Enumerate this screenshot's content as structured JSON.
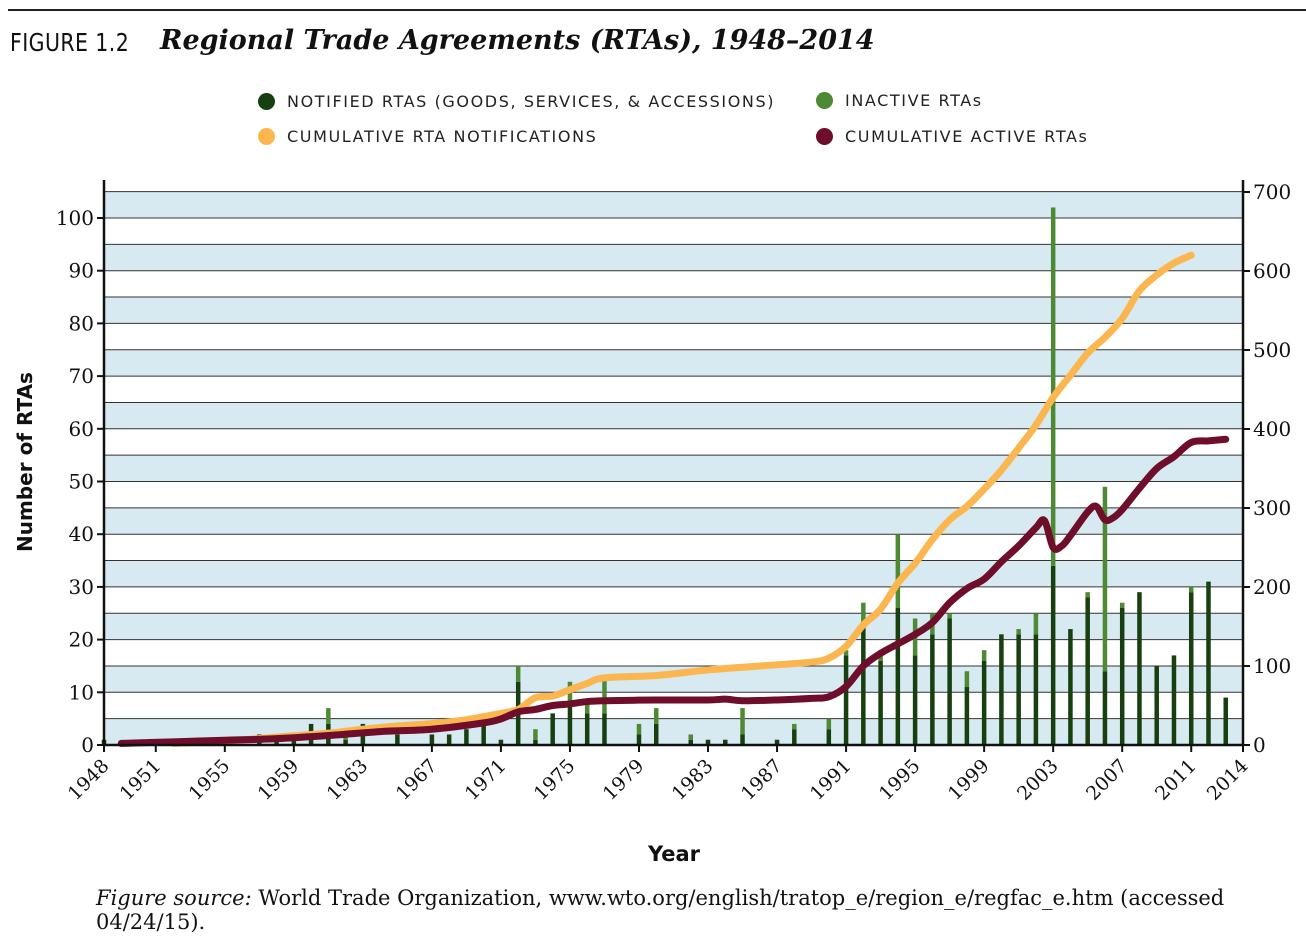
{
  "figure": {
    "label": "FIGURE 1.2",
    "title": "Regional Trade Agreements (RTAs), 1948–2014"
  },
  "legend": [
    {
      "label": "NOTIFIED RTAS (GOODS, SERVICES, & ACCESSIONS)",
      "color": "#183f10"
    },
    {
      "label": "INACTIVE RTAs",
      "color": "#4e8a34"
    },
    {
      "label": "CUMULATIVE RTA NOTIFICATIONS",
      "color": "#fbb650"
    },
    {
      "label": "CUMULATIVE ACTIVE RTAs",
      "color": "#6e0e2a"
    }
  ],
  "source": {
    "prefix": "Figure source:",
    "text": " World Trade Organization, www.wto.org/english/tratop_e/region_e/regfac_e.htm (accessed 04/24/15)."
  },
  "chart_data": {
    "type": "bar",
    "xlabel": "Year",
    "ylabel": "Number of RTAs",
    "ylim": [
      0,
      105
    ],
    "y2lim": [
      0,
      700
    ],
    "yticks": [
      0,
      10,
      20,
      30,
      40,
      50,
      60,
      70,
      80,
      90,
      100
    ],
    "y2ticks": [
      0,
      100,
      200,
      300,
      400,
      500,
      600,
      700
    ],
    "xlim": [
      1948,
      2014
    ],
    "xticks": [
      1948,
      1951,
      1955,
      1959,
      1963,
      1967,
      1971,
      1975,
      1979,
      1983,
      1987,
      1991,
      1995,
      1999,
      2003,
      2007,
      2011,
      2014
    ],
    "grid": true,
    "colors": {
      "notified": "#183f10",
      "inactive": "#4e8a34",
      "cumulative_notifications": "#fbb650",
      "cumulative_active": "#6e0e2a",
      "band": "#d7e9f1"
    },
    "bars": {
      "years": [
        1948,
        1950,
        1953,
        1955,
        1957,
        1958,
        1959,
        1960,
        1961,
        1962,
        1963,
        1965,
        1967,
        1968,
        1969,
        1970,
        1971,
        1972,
        1973,
        1974,
        1975,
        1976,
        1977,
        1979,
        1980,
        1982,
        1983,
        1984,
        1985,
        1987,
        1988,
        1990,
        1991,
        1992,
        1993,
        1994,
        1995,
        1996,
        1997,
        1998,
        1999,
        2000,
        2001,
        2002,
        2003,
        2004,
        2005,
        2006,
        2007,
        2008,
        2009,
        2010,
        2011,
        2012,
        2013
      ],
      "notified": [
        1,
        1,
        1,
        1,
        2,
        1,
        1,
        4,
        4,
        1,
        4,
        2,
        2,
        2,
        3,
        4,
        1,
        12,
        1,
        6,
        8,
        6,
        6,
        2,
        4,
        1,
        1,
        1,
        2,
        1,
        3,
        3,
        17,
        23,
        16,
        26,
        17,
        21,
        24,
        11,
        16,
        21,
        21,
        21,
        34,
        22,
        28,
        14,
        26,
        29,
        15,
        17,
        29,
        31,
        9
      ],
      "inactive": [
        0,
        0,
        0,
        0,
        0,
        1,
        0,
        0,
        3,
        1,
        0,
        0,
        0,
        0,
        0,
        2,
        0,
        3,
        2,
        0,
        4,
        2,
        7,
        2,
        3,
        1,
        0,
        0,
        5,
        0,
        1,
        2,
        1,
        4,
        2,
        14,
        7,
        4,
        1,
        3,
        2,
        0,
        1,
        4,
        68,
        0,
        1,
        35,
        1,
        0,
        0,
        0,
        1,
        0,
        0
      ]
    },
    "series": [
      {
        "name": "CUMULATIVE RTA NOTIFICATIONS",
        "axis": "right",
        "x": [
          1952,
          1955,
          1958,
          1961,
          1963,
          1965,
          1967,
          1969,
          1971,
          1972,
          1973,
          1974,
          1975,
          1976,
          1977,
          1980,
          1983,
          1986,
          1989,
          1990,
          1991,
          1992,
          1993,
          1994,
          1995,
          1996,
          1997,
          1998,
          1999,
          2000,
          2001,
          2002,
          2003,
          2004,
          2005,
          2006,
          2007,
          2008,
          2009,
          2010,
          2011
        ],
        "y": [
          2,
          5,
          10,
          15,
          20,
          24,
          27,
          32,
          40,
          45,
          60,
          62,
          70,
          78,
          85,
          88,
          95,
          100,
          105,
          110,
          125,
          152,
          172,
          205,
          230,
          260,
          285,
          302,
          324,
          348,
          376,
          405,
          440,
          468,
          496,
          516,
          540,
          575,
          595,
          610,
          620
        ]
      },
      {
        "name": "CUMULATIVE ACTIVE RTAs",
        "axis": "right",
        "x": [
          1949,
          1952,
          1955,
          1958,
          1961,
          1964,
          1967,
          1970,
          1971,
          1972,
          1973,
          1974,
          1975,
          1976,
          1977,
          1980,
          1983,
          1984,
          1985,
          1987,
          1989,
          1990,
          1991,
          1992,
          1993,
          1994,
          1995,
          1996,
          1997,
          1998,
          1999,
          2000,
          2001,
          2002,
          2002.5,
          2003,
          2003.5,
          2004,
          2005,
          2005.5,
          2006,
          2006.5,
          2007,
          2008,
          2009,
          2010,
          2011,
          2012,
          2013
        ],
        "y": [
          2,
          4,
          6,
          8,
          12,
          17,
          20,
          28,
          33,
          42,
          45,
          50,
          52,
          55,
          56,
          57,
          57,
          58,
          56,
          57,
          59,
          61,
          74,
          100,
          116,
          128,
          140,
          155,
          180,
          198,
          210,
          232,
          252,
          275,
          284,
          250,
          252,
          265,
          295,
          302,
          285,
          288,
          298,
          325,
          350,
          365,
          383,
          385,
          387
        ]
      }
    ]
  }
}
